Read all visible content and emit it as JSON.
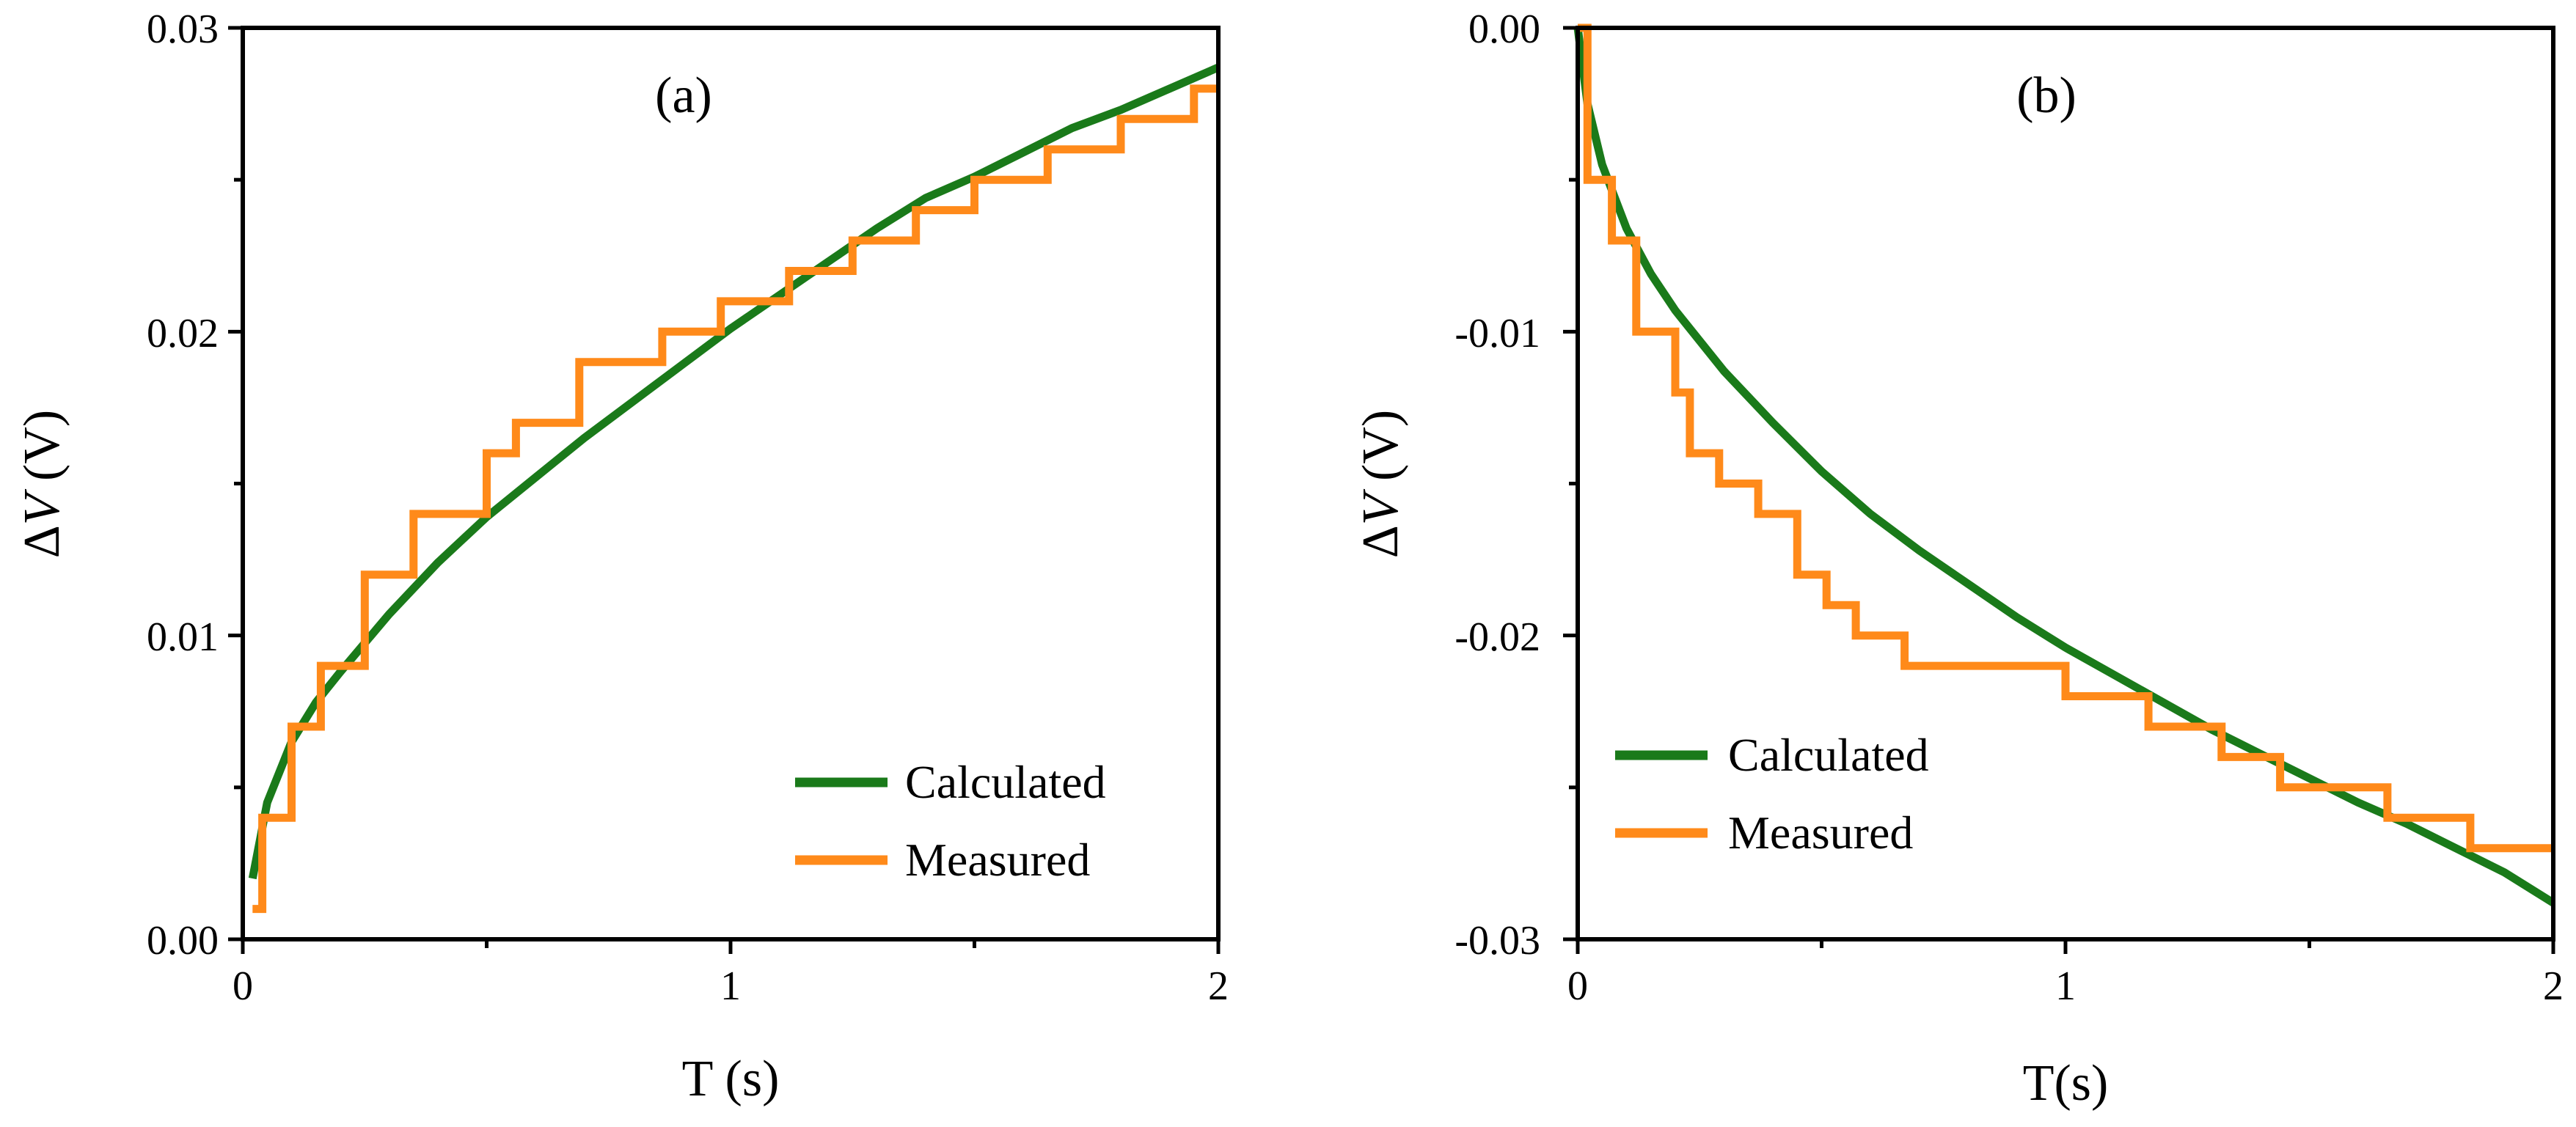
{
  "chart_data": [
    {
      "type": "line",
      "panel_label": "(a)",
      "xlabel": "T (s)",
      "ylabel_delta": "Δ",
      "ylabel_var": "V",
      "ylabel_unit": " (V)",
      "xlim": [
        0,
        2
      ],
      "ylim": [
        0,
        0.03
      ],
      "xticks": [
        0,
        1,
        2
      ],
      "xtick_labels": [
        "0",
        "1",
        "2"
      ],
      "yticks": [
        0,
        0.01,
        0.02,
        0.03
      ],
      "ytick_labels": [
        "0.00",
        "0.01",
        "0.02",
        "0.03"
      ],
      "legend_position": "bottom-right",
      "series": [
        {
          "name": "Calculated",
          "color": "#1a7a1a",
          "kind": "smooth",
          "x": [
            0.02,
            0.05,
            0.1,
            0.15,
            0.2,
            0.3,
            0.4,
            0.5,
            0.6,
            0.7,
            0.8,
            0.9,
            1.0,
            1.1,
            1.2,
            1.3,
            1.4,
            1.5,
            1.6,
            1.7,
            1.8,
            1.9,
            2.0
          ],
          "y": [
            0.002,
            0.0045,
            0.0065,
            0.0078,
            0.0088,
            0.0107,
            0.0124,
            0.0139,
            0.0152,
            0.0165,
            0.0177,
            0.0189,
            0.0201,
            0.0212,
            0.0223,
            0.0234,
            0.0244,
            0.0251,
            0.0259,
            0.0267,
            0.0273,
            0.028,
            0.0287
          ]
        },
        {
          "name": "Measured",
          "color": "#ff8a1a",
          "kind": "step",
          "x": [
            0.02,
            0.04,
            0.1,
            0.16,
            0.25,
            0.35,
            0.5,
            0.56,
            0.69,
            0.86,
            0.98,
            1.12,
            1.25,
            1.38,
            1.5,
            1.65,
            1.8,
            1.95,
            2.0
          ],
          "y": [
            0.001,
            0.004,
            0.007,
            0.009,
            0.012,
            0.014,
            0.016,
            0.017,
            0.019,
            0.02,
            0.021,
            0.022,
            0.023,
            0.024,
            0.025,
            0.026,
            0.027,
            0.028,
            0.028
          ]
        }
      ]
    },
    {
      "type": "line",
      "panel_label": "(b)",
      "xlabel": "T(s)",
      "ylabel_delta": "Δ",
      "ylabel_var": "V",
      "ylabel_unit": " (V)",
      "xlim": [
        0,
        2
      ],
      "ylim": [
        -0.03,
        0
      ],
      "xticks": [
        0,
        1,
        2
      ],
      "xtick_labels": [
        "0",
        "1",
        "2"
      ],
      "yticks": [
        -0.03,
        -0.02,
        -0.01,
        0
      ],
      "ytick_labels": [
        "-0.03",
        "-0.02",
        "-0.01",
        "0.00"
      ],
      "legend_position": "center-left",
      "series": [
        {
          "name": "Calculated",
          "color": "#1a7a1a",
          "kind": "smooth",
          "x": [
            0.0,
            0.02,
            0.05,
            0.1,
            0.15,
            0.2,
            0.3,
            0.4,
            0.5,
            0.6,
            0.7,
            0.8,
            0.9,
            1.0,
            1.1,
            1.2,
            1.3,
            1.4,
            1.5,
            1.6,
            1.7,
            1.8,
            1.9,
            2.0
          ],
          "y": [
            0.0,
            -0.0025,
            -0.0045,
            -0.0066,
            -0.0081,
            -0.0093,
            -0.0113,
            -0.013,
            -0.0146,
            -0.016,
            -0.0172,
            -0.0183,
            -0.0194,
            -0.0204,
            -0.0213,
            -0.0222,
            -0.0231,
            -0.0239,
            -0.0247,
            -0.0255,
            -0.0262,
            -0.027,
            -0.0278,
            -0.0288
          ]
        },
        {
          "name": "Measured",
          "color": "#ff8a1a",
          "kind": "step",
          "x": [
            0.0,
            0.02,
            0.07,
            0.12,
            0.2,
            0.23,
            0.29,
            0.37,
            0.45,
            0.51,
            0.57,
            0.67,
            0.78,
            1.0,
            1.17,
            1.32,
            1.44,
            1.66,
            1.83,
            2.0
          ],
          "y": [
            0.0,
            -0.005,
            -0.007,
            -0.01,
            -0.012,
            -0.014,
            -0.015,
            -0.016,
            -0.018,
            -0.019,
            -0.02,
            -0.021,
            -0.021,
            -0.022,
            -0.023,
            -0.024,
            -0.025,
            -0.026,
            -0.027,
            -0.027
          ]
        }
      ]
    }
  ]
}
